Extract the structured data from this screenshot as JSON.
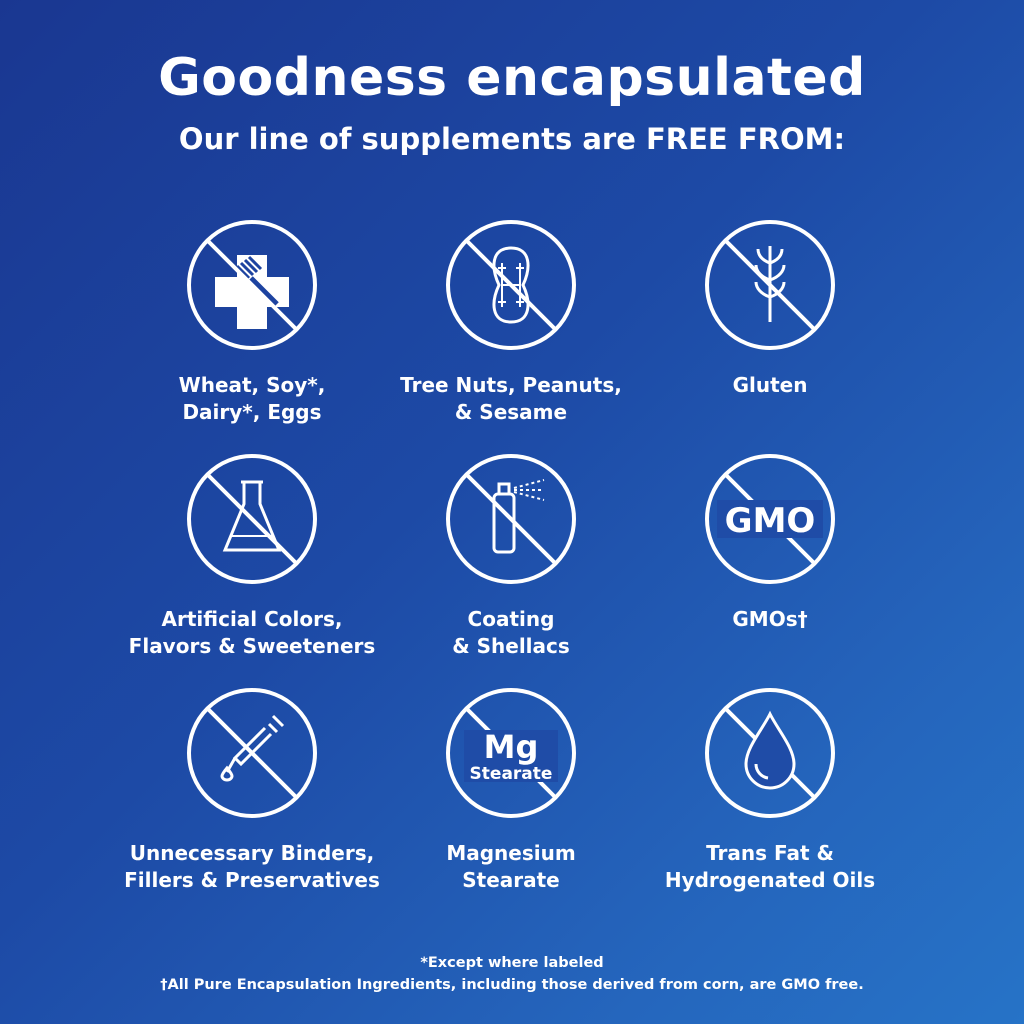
{
  "header": {
    "title": "Goodness encapsulated",
    "subtitle": "Our line of supplements are FREE FROM:"
  },
  "items": [
    {
      "icon": "allergen-cross-fork-icon",
      "label": "Wheat, Soy*,\nDairy*, Eggs"
    },
    {
      "icon": "peanut-icon",
      "label": "Tree Nuts, Peanuts,\n& Sesame"
    },
    {
      "icon": "wheat-icon",
      "label": "Gluten"
    },
    {
      "icon": "flask-icon",
      "label": "Artificial Colors,\nFlavors & Sweeteners"
    },
    {
      "icon": "spray-can-icon",
      "label": "Coating\n& Shellacs"
    },
    {
      "icon": "gmo-icon",
      "label": "GMOs†",
      "icon_text": "GMO"
    },
    {
      "icon": "dropper-icon",
      "label": "Unnecessary Binders,\nFillers & Preservatives"
    },
    {
      "icon": "mg-stearate-icon",
      "label": "Magnesium\nStearate",
      "icon_text": "Mg",
      "icon_subtext": "Stearate"
    },
    {
      "icon": "oil-drop-icon",
      "label": "Trans Fat &\nHydrogenated Oils"
    }
  ],
  "footnotes": {
    "asterisk": "*Except where labeled",
    "dagger": "†All Pure Encapsulation Ingredients, including those derived from corn, are GMO free."
  },
  "colors": {
    "background_start": "#1a3791",
    "background_end": "#2673c7",
    "foreground": "#ffffff"
  }
}
